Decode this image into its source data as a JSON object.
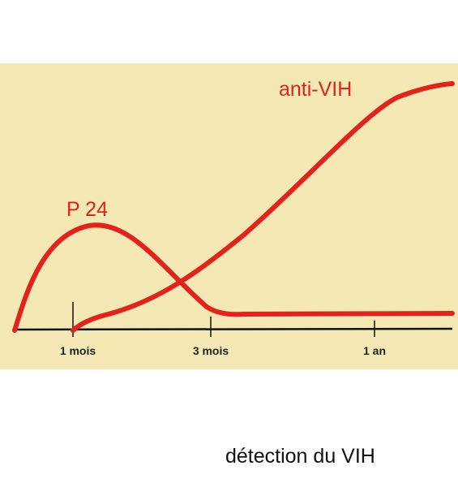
{
  "curves": {
    "p24": "P 24",
    "anti_vih": "anti-VIH"
  },
  "axis": {
    "ticks": [
      "1 mois",
      "3 mois",
      "1 an"
    ]
  },
  "caption": "détection du VIH"
}
